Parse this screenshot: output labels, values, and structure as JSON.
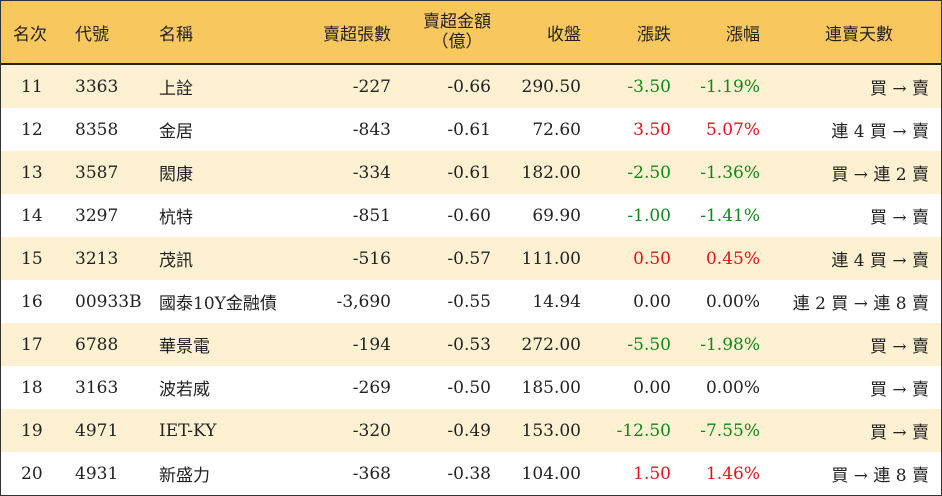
{
  "header": {
    "rank": "名次",
    "code": "代號",
    "name": "名稱",
    "net_sell_lots": "賣超張數",
    "net_sell_amount": "賣超金額",
    "net_sell_amount_unit": "（億）",
    "close": "收盤",
    "change": "漲跌",
    "change_pct": "漲幅",
    "sell_streak": "連賣天數"
  },
  "rows": [
    {
      "rank": "11",
      "code": "3363",
      "name": "上詮",
      "lots": "-227",
      "amount": "-0.66",
      "close": "290.50",
      "change": "-3.50",
      "pct": "-1.19%",
      "streak": "買 → 賣",
      "dir": "neg"
    },
    {
      "rank": "12",
      "code": "8358",
      "name": "金居",
      "lots": "-843",
      "amount": "-0.61",
      "close": "72.60",
      "change": "3.50",
      "pct": "5.07%",
      "streak": "連 4 買 → 賣",
      "dir": "pos"
    },
    {
      "rank": "13",
      "code": "3587",
      "name": "閎康",
      "lots": "-334",
      "amount": "-0.61",
      "close": "182.00",
      "change": "-2.50",
      "pct": "-1.36%",
      "streak": "買 → 連 2 賣",
      "dir": "neg"
    },
    {
      "rank": "14",
      "code": "3297",
      "name": "杭特",
      "lots": "-851",
      "amount": "-0.60",
      "close": "69.90",
      "change": "-1.00",
      "pct": "-1.41%",
      "streak": "買 → 賣",
      "dir": "neg"
    },
    {
      "rank": "15",
      "code": "3213",
      "name": "茂訊",
      "lots": "-516",
      "amount": "-0.57",
      "close": "111.00",
      "change": "0.50",
      "pct": "0.45%",
      "streak": "連 4 買 → 賣",
      "dir": "pos"
    },
    {
      "rank": "16",
      "code": "00933B",
      "name": "國泰10Y金融債",
      "lots": "-3,690",
      "amount": "-0.55",
      "close": "14.94",
      "change": "0.00",
      "pct": "0.00%",
      "streak": "連 2 買 → 連 8 賣",
      "dir": "zero"
    },
    {
      "rank": "17",
      "code": "6788",
      "name": "華景電",
      "lots": "-194",
      "amount": "-0.53",
      "close": "272.00",
      "change": "-5.50",
      "pct": "-1.98%",
      "streak": "買 → 賣",
      "dir": "neg"
    },
    {
      "rank": "18",
      "code": "3163",
      "name": "波若威",
      "lots": "-269",
      "amount": "-0.50",
      "close": "185.00",
      "change": "0.00",
      "pct": "0.00%",
      "streak": "買 → 賣",
      "dir": "zero"
    },
    {
      "rank": "19",
      "code": "4971",
      "name": "IET-KY",
      "lots": "-320",
      "amount": "-0.49",
      "close": "153.00",
      "change": "-12.50",
      "pct": "-7.55%",
      "streak": "買 → 賣",
      "dir": "neg"
    },
    {
      "rank": "20",
      "code": "4931",
      "name": "新盛力",
      "lots": "-368",
      "amount": "-0.38",
      "close": "104.00",
      "change": "1.50",
      "pct": "1.46%",
      "streak": "買 → 連 8 賣",
      "dir": "pos"
    }
  ],
  "colors": {
    "header_bg": "#f8c85e",
    "odd_row_bg": "#fdf1d2",
    "up": "#e8101a",
    "down": "#0c8a18"
  }
}
